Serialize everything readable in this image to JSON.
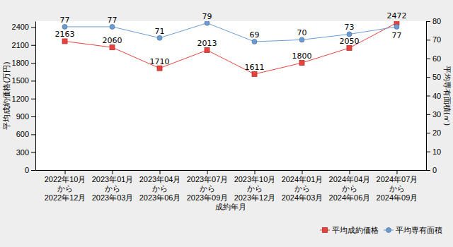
{
  "chart_data": {
    "type": "line",
    "x_label": "成約年月",
    "y_label": "平均成約価格(万円)",
    "y2_label": "平均専有面積(㎡)",
    "categories": [
      "2022年10月\nから\n2022年12月",
      "2023年01月\nから\n2023年03月",
      "2023年04月\nから\n2023年06月",
      "2023年07月\nから\n2023年09月",
      "2023年10月\nから\n2023年12月",
      "2024年01月\nから\n2024年03月",
      "2024年04月\nから\n2024年06月",
      "2024年07月\nから\n2024年09月"
    ],
    "series": [
      {
        "name": "平均成約価格",
        "color": "#e8423f",
        "marker": "square",
        "line_style": "solid",
        "values": [
          2163,
          2060,
          1710,
          2013,
          1611,
          1800,
          2050,
          2472
        ]
      },
      {
        "name": "平均専有面積",
        "color": "#6c9bd2",
        "marker": "circle",
        "line_style": "solid",
        "axis": "y2",
        "values": [
          77,
          77,
          71,
          79,
          69,
          70,
          73,
          77
        ]
      }
    ],
    "ylim": [
      0,
      2500
    ],
    "yticks": [
      0,
      300,
      600,
      900,
      1200,
      1500,
      1800,
      2100,
      2400
    ],
    "y2lim": [
      0,
      80
    ],
    "y2ticks": [
      0,
      10,
      20,
      30,
      40,
      50,
      60,
      70,
      80
    ],
    "grid": false,
    "data_labels": true,
    "legend": "bottom-right"
  }
}
